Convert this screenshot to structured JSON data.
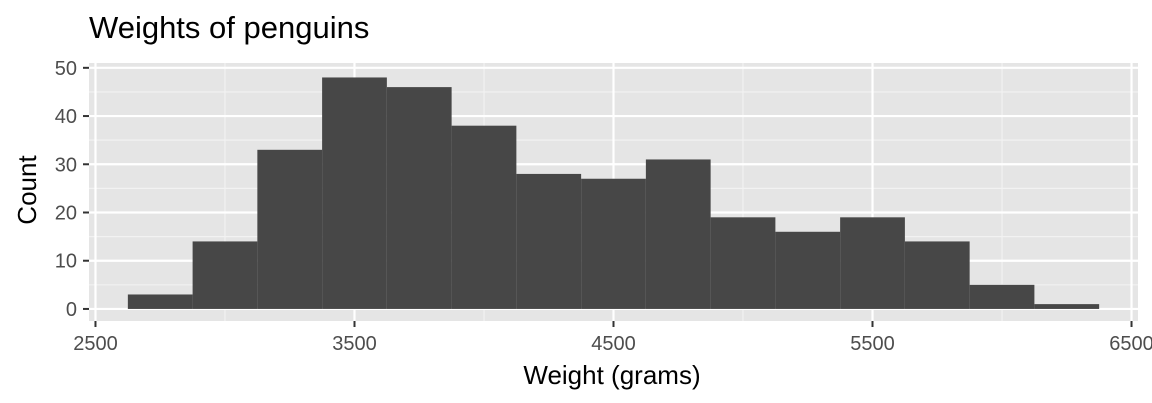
{
  "chart_data": {
    "type": "bar",
    "title": "Weights of penguins",
    "xlabel": "Weight (grams)",
    "ylabel": "Count",
    "xlim": [
      2475,
      6525
    ],
    "ylim": [
      -2.5,
      51
    ],
    "xticks": [
      2500,
      3500,
      4500,
      5500,
      6500
    ],
    "yticks": [
      0,
      10,
      20,
      30,
      40,
      50
    ],
    "bin_width": 250,
    "bins": [
      {
        "x0": 2625,
        "x1": 2875,
        "count": 3
      },
      {
        "x0": 2875,
        "x1": 3125,
        "count": 14
      },
      {
        "x0": 3125,
        "x1": 3375,
        "count": 33
      },
      {
        "x0": 3375,
        "x1": 3625,
        "count": 48
      },
      {
        "x0": 3625,
        "x1": 3875,
        "count": 46
      },
      {
        "x0": 3875,
        "x1": 4125,
        "count": 38
      },
      {
        "x0": 4125,
        "x1": 4375,
        "count": 28
      },
      {
        "x0": 4375,
        "x1": 4625,
        "count": 27
      },
      {
        "x0": 4625,
        "x1": 4875,
        "count": 31
      },
      {
        "x0": 4875,
        "x1": 5125,
        "count": 19
      },
      {
        "x0": 5125,
        "x1": 5375,
        "count": 16
      },
      {
        "x0": 5375,
        "x1": 5625,
        "count": 19
      },
      {
        "x0": 5625,
        "x1": 5875,
        "count": 14
      },
      {
        "x0": 5875,
        "x1": 6125,
        "count": 5
      },
      {
        "x0": 6125,
        "x1": 6375,
        "count": 1
      }
    ],
    "grid": true,
    "colors": {
      "panel_background": "#e5e5e5",
      "grid_major": "#ffffff",
      "grid_minor": "#f2f2f2",
      "bar_fill": "#474747",
      "tick_text": "#4d4d4d",
      "tick_mark": "#333333"
    }
  }
}
